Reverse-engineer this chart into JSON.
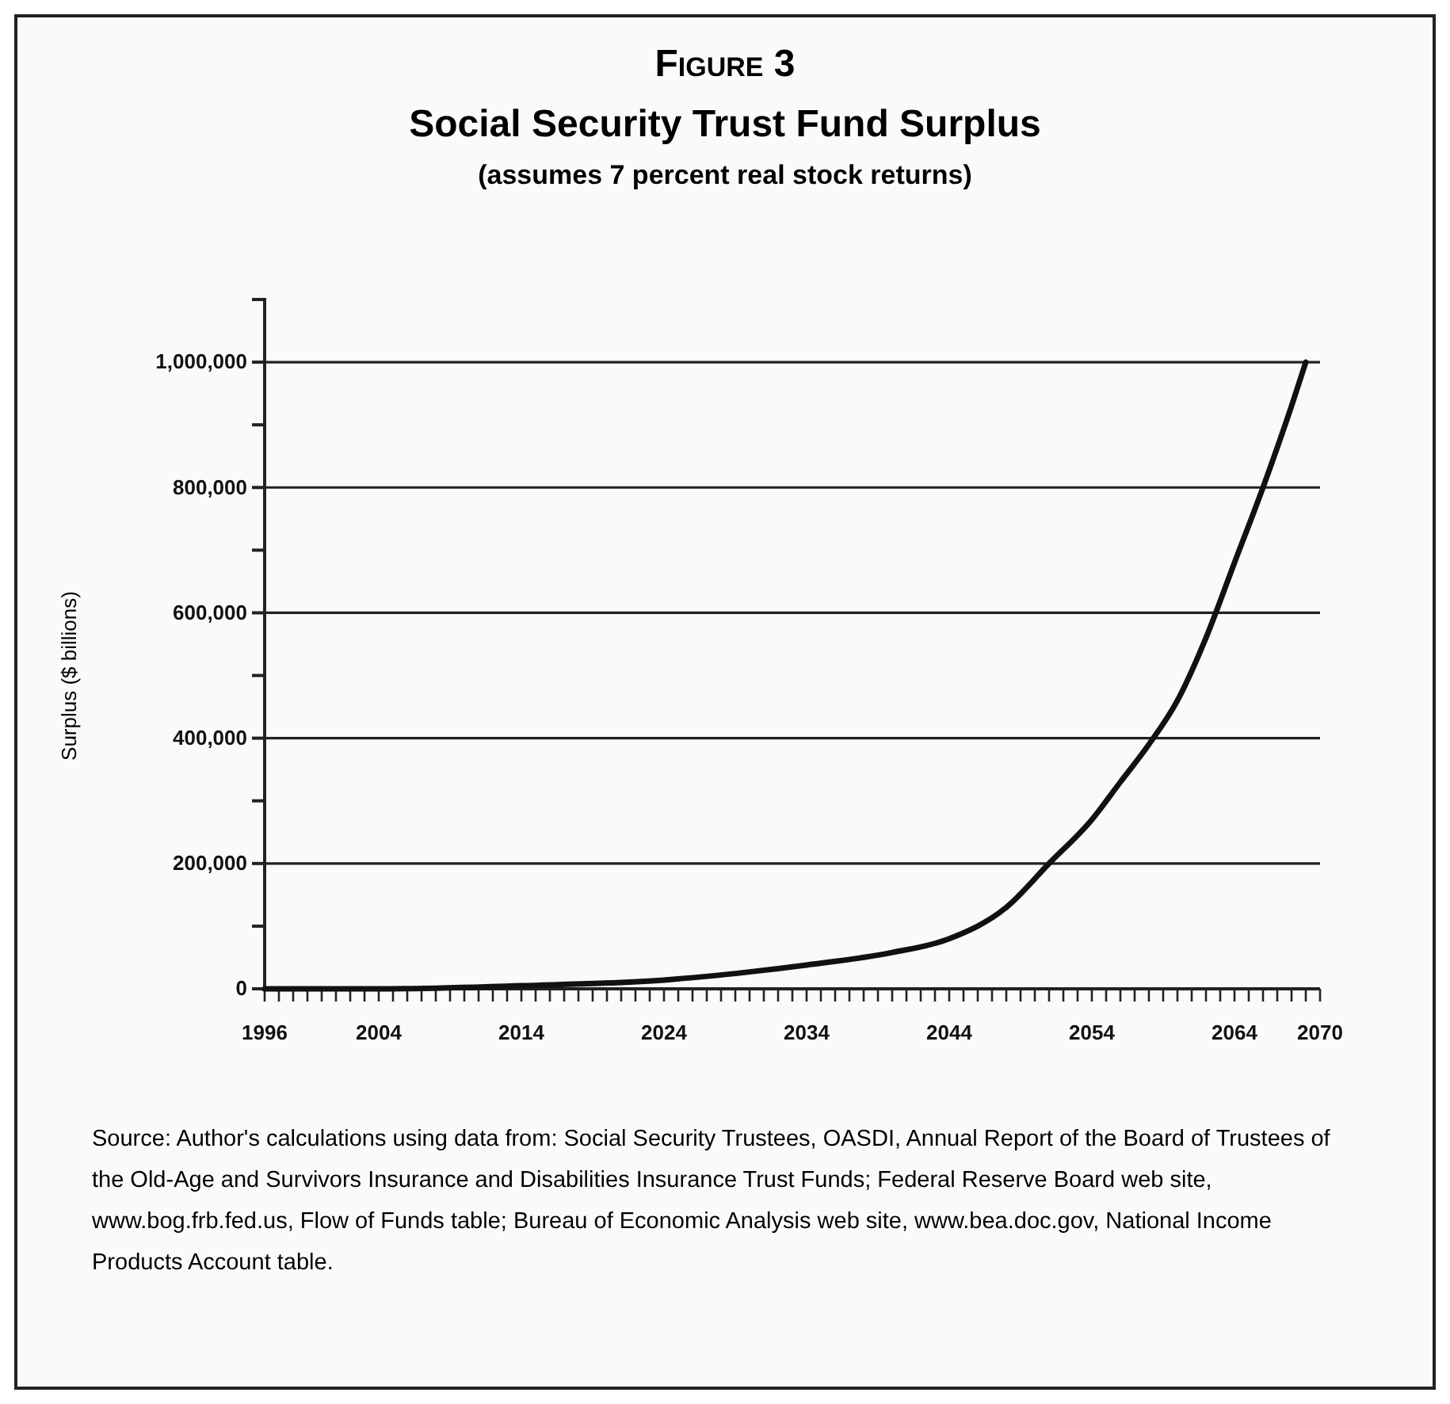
{
  "chart_data": {
    "type": "line",
    "title": "Social Security Trust Fund Surplus",
    "subtitle": "(assumes 7 percent real stock returns)",
    "ylabel": "Surplus ($ billions)",
    "annotations": [
      "Figure 3",
      "Source: Author's calculations using data from: Social Security Trustees, OASDI, Annual Report of the Board of Trustees of the Old-Age and Survivors Insurance and Disabilities Insurance Trust Funds; Federal Reserve Board web site, www.bog.frb.fed.us, Flow of Funds table; Bureau of Economic Analysis web site, www.bea.doc.gov, National Income Products Account table."
    ],
    "x": [
      1996,
      2004,
      2014,
      2024,
      2030,
      2034,
      2040,
      2044,
      2048,
      2051,
      2054,
      2056,
      2058,
      2060,
      2062,
      2064,
      2066,
      2068,
      2069
    ],
    "series": [
      {
        "color": "#111111",
        "values": [
          0,
          0,
          5000,
          14000,
          27000,
          38000,
          58000,
          80000,
          130000,
          200000,
          270000,
          330000,
          390000,
          460000,
          560000,
          680000,
          800000,
          930000,
          1000000
        ]
      }
    ],
    "xlim": [
      1996,
      2070
    ],
    "xticks": [
      1996,
      {
        "value": 1997,
        "label": null
      },
      {
        "value": 1998,
        "label": null
      },
      {
        "value": 1999,
        "label": null
      },
      {
        "value": 2000,
        "label": null
      },
      {
        "value": 2001,
        "label": null
      },
      {
        "value": 2002,
        "label": null
      },
      {
        "value": 2003,
        "label": null
      },
      2004,
      {
        "value": 2005,
        "label": null
      },
      {
        "value": 2006,
        "label": null
      },
      {
        "value": 2007,
        "label": null
      },
      {
        "value": 2008,
        "label": null
      },
      {
        "value": 2009,
        "label": null
      },
      {
        "value": 2010,
        "label": null
      },
      {
        "value": 2011,
        "label": null
      },
      {
        "value": 2012,
        "label": null
      },
      {
        "value": 2013,
        "label": null
      },
      2014,
      {
        "value": 2015,
        "label": null
      },
      {
        "value": 2016,
        "label": null
      },
      {
        "value": 2017,
        "label": null
      },
      {
        "value": 2018,
        "label": null
      },
      {
        "value": 2019,
        "label": null
      },
      {
        "value": 2020,
        "label": null
      },
      {
        "value": 2021,
        "label": null
      },
      {
        "value": 2022,
        "label": null
      },
      {
        "value": 2023,
        "label": null
      },
      2024,
      {
        "value": 2025,
        "label": null
      },
      {
        "value": 2026,
        "label": null
      },
      {
        "value": 2027,
        "label": null
      },
      {
        "value": 2028,
        "label": null
      },
      {
        "value": 2029,
        "label": null
      },
      {
        "value": 2030,
        "label": null
      },
      {
        "value": 2031,
        "label": null
      },
      {
        "value": 2032,
        "label": null
      },
      {
        "value": 2033,
        "label": null
      },
      2034,
      {
        "value": 2035,
        "label": null
      },
      {
        "value": 2036,
        "label": null
      },
      {
        "value": 2037,
        "label": null
      },
      {
        "value": 2038,
        "label": null
      },
      {
        "value": 2039,
        "label": null
      },
      {
        "value": 2040,
        "label": null
      },
      {
        "value": 2041,
        "label": null
      },
      {
        "value": 2042,
        "label": null
      },
      {
        "value": 2043,
        "label": null
      },
      2044,
      {
        "value": 2045,
        "label": null
      },
      {
        "value": 2046,
        "label": null
      },
      {
        "value": 2047,
        "label": null
      },
      {
        "value": 2048,
        "label": null
      },
      {
        "value": 2049,
        "label": null
      },
      {
        "value": 2050,
        "label": null
      },
      {
        "value": 2051,
        "label": null
      },
      {
        "value": 2052,
        "label": null
      },
      {
        "value": 2053,
        "label": null
      },
      2054,
      {
        "value": 2055,
        "label": null
      },
      {
        "value": 2056,
        "label": null
      },
      {
        "value": 2057,
        "label": null
      },
      {
        "value": 2058,
        "label": null
      },
      {
        "value": 2059,
        "label": null
      },
      {
        "value": 2060,
        "label": null
      },
      {
        "value": 2061,
        "label": null
      },
      {
        "value": 2062,
        "label": null
      },
      {
        "value": 2063,
        "label": null
      },
      2064,
      {
        "value": 2065,
        "label": null
      },
      {
        "value": 2066,
        "label": null
      },
      {
        "value": 2067,
        "label": null
      },
      {
        "value": 2068,
        "label": null
      },
      {
        "value": 2069,
        "label": null
      },
      2070
    ],
    "ylim": [
      0,
      1100000
    ],
    "yticks": [
      {
        "value": 0,
        "label": "0"
      },
      {
        "value": 100000,
        "label": null
      },
      {
        "value": 200000,
        "label": "200,000"
      },
      {
        "value": 300000,
        "label": null
      },
      {
        "value": 400000,
        "label": "400,000"
      },
      {
        "value": 500000,
        "label": null
      },
      {
        "value": 600000,
        "label": "600,000"
      },
      {
        "value": 700000,
        "label": null
      },
      {
        "value": 800000,
        "label": "800,000"
      },
      {
        "value": 900000,
        "label": null
      },
      {
        "value": 1000000,
        "label": "1,000,000"
      },
      {
        "value": 1100000,
        "label": null
      }
    ],
    "grid": "y",
    "marker": "none",
    "line_style": "solid"
  }
}
